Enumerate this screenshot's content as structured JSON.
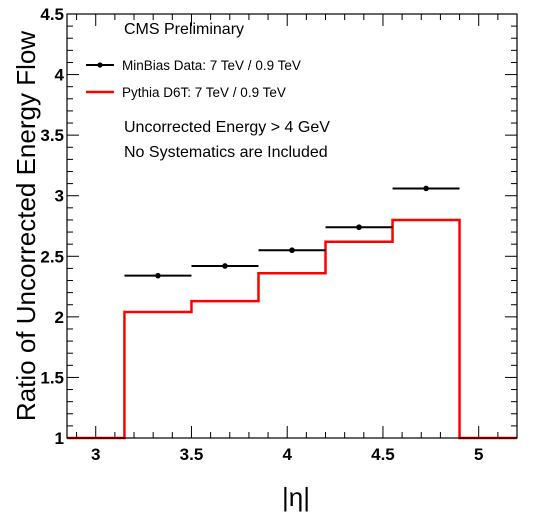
{
  "chart_data": {
    "type": "line",
    "header": "CMS Preliminary",
    "notes": [
      "Uncorrected Energy > 4 GeV",
      "No Systematics are Included"
    ],
    "xlabel": "|η|",
    "ylabel": "Ratio of Uncorrected Energy Flow",
    "xlim": [
      2.85,
      5.2
    ],
    "ylim": [
      1,
      4.5
    ],
    "x_ticks": [
      "3",
      "3.5",
      "4",
      "4.5",
      "5"
    ],
    "y_ticks": [
      "1",
      "1.5",
      "2",
      "2.5",
      "3",
      "3.5",
      "4",
      "4.5"
    ],
    "grid": false,
    "legend_position": "top-left",
    "series": [
      {
        "name": "MinBias Data: 7 TeV / 0.9 TeV",
        "style": "points-with-x-error",
        "color": "#000000",
        "points": [
          {
            "xlow": 3.15,
            "xhigh": 3.5,
            "x": 3.325,
            "y": 2.34
          },
          {
            "xlow": 3.5,
            "xhigh": 3.85,
            "x": 3.675,
            "y": 2.42
          },
          {
            "xlow": 3.85,
            "xhigh": 4.2,
            "x": 4.025,
            "y": 2.55
          },
          {
            "xlow": 4.2,
            "xhigh": 4.55,
            "x": 4.375,
            "y": 2.74
          },
          {
            "xlow": 4.55,
            "xhigh": 4.9,
            "x": 4.725,
            "y": 3.06
          }
        ]
      },
      {
        "name": "Pythia D6T: 7 TeV / 0.9 TeV",
        "style": "step-histogram",
        "color": "#ff0000",
        "outside_value": 1.0,
        "bins": [
          {
            "xlow": 3.15,
            "xhigh": 3.5,
            "y": 2.04
          },
          {
            "xlow": 3.5,
            "xhigh": 3.85,
            "y": 2.13
          },
          {
            "xlow": 3.85,
            "xhigh": 4.2,
            "y": 2.36
          },
          {
            "xlow": 4.2,
            "xhigh": 4.55,
            "y": 2.62
          },
          {
            "xlow": 4.55,
            "xhigh": 4.9,
            "y": 2.8
          }
        ]
      }
    ]
  }
}
